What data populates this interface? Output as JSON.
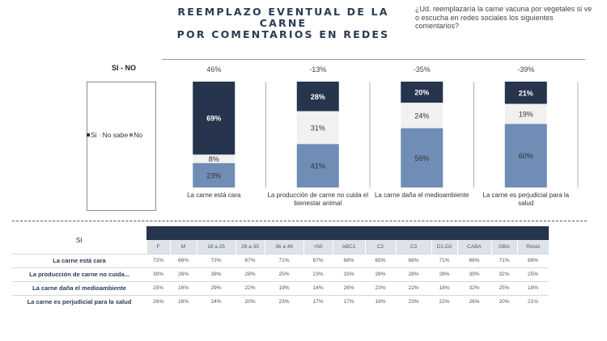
{
  "title": {
    "line1": "REEMPLAZO EVENTUAL DE LA CARNE",
    "line2": "POR COMENTARIOS EN REDES"
  },
  "question": "¿Ud. reemplazaría la carne vacuna por vegetales si ve o escucha en redes sociales los siguientes comentarios?",
  "si_no_label": "SI - NO",
  "legend": [
    {
      "label": "Si",
      "color": "#27344d"
    },
    {
      "label": "No sabe",
      "color": "#f1f1f1"
    },
    {
      "label": "No",
      "color": "#6f8db5"
    }
  ],
  "chart_data": {
    "type": "bar",
    "stacked": true,
    "categories": [
      "La carne está cara",
      "La producción de carne no cuida el bienestar animal",
      "La carne daña el medioambiente",
      "La carne es perjudicial para la salud"
    ],
    "net_si_no": [
      "46%",
      "-13%",
      "-35%",
      "-39%"
    ],
    "series": [
      {
        "name": "Si",
        "values": [
          69,
          28,
          20,
          21
        ],
        "color": "#27344d"
      },
      {
        "name": "No sabe",
        "values": [
          8,
          31,
          24,
          19
        ],
        "color": "#f1f1f1"
      },
      {
        "name": "No",
        "values": [
          23,
          41,
          56,
          60
        ],
        "color": "#6f8db5"
      }
    ],
    "ylim": [
      0,
      100
    ]
  },
  "table": {
    "row_header": "SI",
    "columns": [
      "F",
      "M",
      "18 a 25",
      "26 a 35",
      "36 a 49",
      ">50",
      "ABC1",
      "C2",
      "C3",
      "D1-D2",
      "CABA",
      "GBA",
      "Resto"
    ],
    "rows": [
      {
        "label": "La carne está cara",
        "values": [
          "72%",
          "66%",
          "73%",
          "67%",
          "71%",
          "67%",
          "68%",
          "65%",
          "68%",
          "71%",
          "66%",
          "71%",
          "69%"
        ]
      },
      {
        "label": "La producción de carne no cuida...",
        "values": [
          "30%",
          "26%",
          "38%",
          "28%",
          "25%",
          "23%",
          "33%",
          "26%",
          "28%",
          "28%",
          "39%",
          "32%",
          "25%"
        ]
      },
      {
        "label": "La carne daña el medioambiente",
        "values": [
          "25%",
          "16%",
          "29%",
          "22%",
          "19%",
          "14%",
          "26%",
          "23%",
          "22%",
          "18%",
          "32%",
          "25%",
          "18%"
        ]
      },
      {
        "label": "La carne es perjudicial para la salud",
        "values": [
          "26%",
          "16%",
          "24%",
          "20%",
          "23%",
          "17%",
          "17%",
          "18%",
          "23%",
          "22%",
          "26%",
          "20%",
          "21%"
        ]
      }
    ]
  }
}
